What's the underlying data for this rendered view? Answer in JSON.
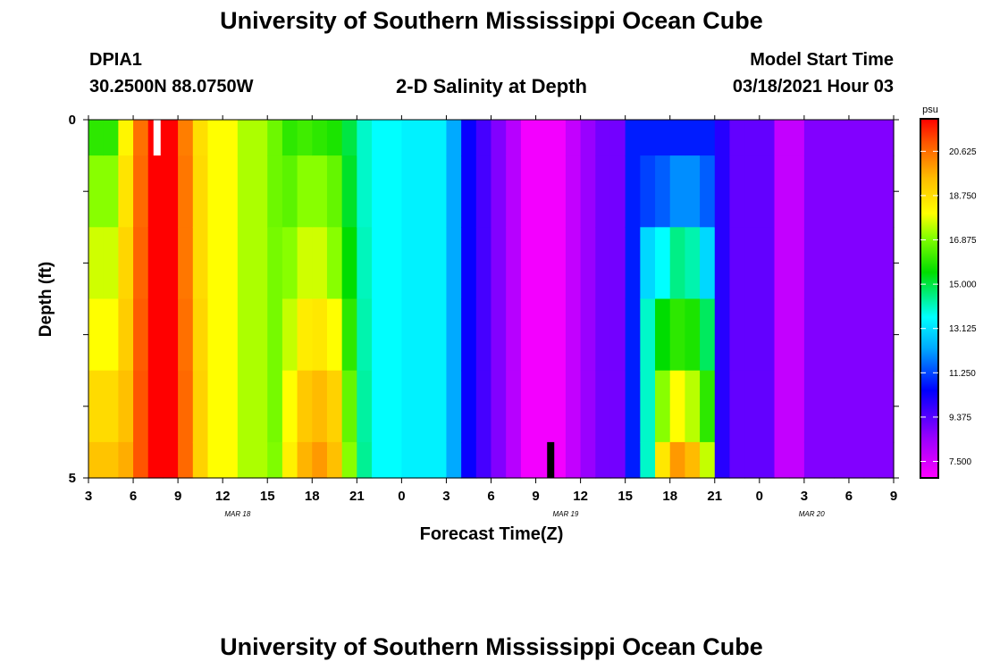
{
  "page": {
    "title": "University of Southern Mississippi Ocean Cube",
    "station_id": "DPIA1",
    "coordinates": "30.2500N 88.0750W",
    "subtitle": "2-D Salinity at Depth",
    "model_label": "Model Start Time",
    "model_time": "03/18/2021 Hour 03",
    "footer_title": "University of Southern Mississippi Ocean Cube"
  },
  "chart_data": {
    "type": "heatmap",
    "title": "2-D Salinity at Depth",
    "xlabel": "Forecast Time(Z)",
    "ylabel": "Depth (ft)",
    "x_tick_labels": [
      "3",
      "6",
      "9",
      "12",
      "15",
      "18",
      "21",
      "0",
      "3",
      "6",
      "9",
      "12",
      "15",
      "18",
      "21",
      "0",
      "3",
      "6",
      "9"
    ],
    "x_hours": [
      3,
      6,
      9,
      12,
      15,
      18,
      21,
      24,
      27,
      30,
      33,
      36,
      39,
      42,
      45,
      48,
      51,
      54,
      57
    ],
    "x_range_hours": [
      3,
      57
    ],
    "date_labels": [
      {
        "text": "MAR 18",
        "hour": 13
      },
      {
        "text": "MAR 19",
        "hour": 35
      },
      {
        "text": "MAR 20",
        "hour": 51.5
      }
    ],
    "y_range_ft": [
      0,
      5
    ],
    "y_tick_labels": [
      {
        "value": 0,
        "label": "0"
      },
      {
        "value": 1,
        "label": ""
      },
      {
        "value": 2,
        "label": ""
      },
      {
        "value": 3,
        "label": ""
      },
      {
        "value": 4,
        "label": ""
      },
      {
        "value": 5,
        "label": "5"
      }
    ],
    "colorbar": {
      "unit": "psu",
      "min": 6.8,
      "max": 22.0,
      "ticks": [
        "20.625",
        "18.750",
        "16.875",
        "15.000",
        "13.125",
        "11.250",
        "9.375",
        "7.500"
      ],
      "stops": [
        {
          "v": 6.8,
          "c": "#ff00ff"
        },
        {
          "v": 8.5,
          "c": "#9900ff"
        },
        {
          "v": 10.5,
          "c": "#0000ff"
        },
        {
          "v": 12.3,
          "c": "#00aaff"
        },
        {
          "v": 13.6,
          "c": "#00ffff"
        },
        {
          "v": 15.5,
          "c": "#00dd00"
        },
        {
          "v": 17.0,
          "c": "#88ff00"
        },
        {
          "v": 18.0,
          "c": "#ffff00"
        },
        {
          "v": 19.5,
          "c": "#ffbb00"
        },
        {
          "v": 21.0,
          "c": "#ff5500"
        },
        {
          "v": 22.0,
          "c": "#ff0000"
        }
      ]
    },
    "depth_layers_ft": [
      0,
      0.5,
      1.5,
      2.5,
      3.5,
      4.5
    ],
    "time_step_hours": 1,
    "salinity_profiles": [
      {
        "start": 3,
        "end": 5,
        "psu": [
          16.0,
          17.0,
          17.6,
          18.0,
          18.8,
          19.3
        ]
      },
      {
        "start": 5,
        "end": 6,
        "psu": [
          18.2,
          18.6,
          18.9,
          19.1,
          19.4,
          19.7
        ]
      },
      {
        "start": 6,
        "end": 7,
        "psu": [
          20.6,
          20.7,
          20.8,
          20.9,
          21.0,
          21.0
        ]
      },
      {
        "start": 7,
        "end": 9,
        "psu": [
          22.0,
          22.0,
          22.0,
          22.0,
          22.0,
          22.0
        ]
      },
      {
        "start": 9,
        "end": 10,
        "psu": [
          20.4,
          20.5,
          20.5,
          20.6,
          20.7,
          20.7
        ]
      },
      {
        "start": 10,
        "end": 11,
        "psu": [
          18.7,
          18.8,
          18.8,
          18.9,
          19.0,
          19.0
        ]
      },
      {
        "start": 11,
        "end": 13,
        "psu": [
          18.0,
          18.0,
          18.0,
          18.0,
          18.0,
          18.0
        ]
      },
      {
        "start": 13,
        "end": 15,
        "psu": [
          17.3,
          17.3,
          17.3,
          17.3,
          17.3,
          17.3
        ]
      },
      {
        "start": 15,
        "end": 16,
        "psu": [
          16.7,
          16.7,
          16.8,
          16.8,
          16.8,
          16.9
        ]
      },
      {
        "start": 16,
        "end": 17,
        "psu": [
          16.0,
          16.5,
          17.0,
          17.5,
          18.0,
          18.3
        ]
      },
      {
        "start": 17,
        "end": 18,
        "psu": [
          16.2,
          17.0,
          17.6,
          18.4,
          19.2,
          19.6
        ]
      },
      {
        "start": 18,
        "end": 19,
        "psu": [
          16.0,
          17.0,
          17.6,
          18.5,
          19.5,
          20.0
        ]
      },
      {
        "start": 19,
        "end": 20,
        "psu": [
          15.8,
          16.6,
          17.0,
          18.0,
          19.0,
          19.4
        ]
      },
      {
        "start": 20,
        "end": 21,
        "psu": [
          15.0,
          15.2,
          15.5,
          16.0,
          16.6,
          17.0
        ]
      },
      {
        "start": 21,
        "end": 22,
        "psu": [
          14.0,
          14.0,
          14.1,
          14.2,
          14.3,
          14.4
        ]
      },
      {
        "start": 22,
        "end": 24,
        "psu": [
          13.6,
          13.6,
          13.6,
          13.6,
          13.6,
          13.6
        ]
      },
      {
        "start": 24,
        "end": 27,
        "psu": [
          13.4,
          13.4,
          13.4,
          13.4,
          13.4,
          13.4
        ]
      },
      {
        "start": 27,
        "end": 28,
        "psu": [
          12.3,
          12.3,
          12.3,
          12.3,
          12.3,
          12.3
        ]
      },
      {
        "start": 28,
        "end": 29,
        "psu": [
          10.4,
          10.4,
          10.4,
          10.4,
          10.4,
          10.4
        ]
      },
      {
        "start": 29,
        "end": 30,
        "psu": [
          9.6,
          9.6,
          9.6,
          9.6,
          9.6,
          9.6
        ]
      },
      {
        "start": 30,
        "end": 31,
        "psu": [
          8.8,
          8.8,
          8.8,
          8.8,
          8.8,
          8.8
        ]
      },
      {
        "start": 31,
        "end": 32,
        "psu": [
          8.0,
          8.0,
          8.0,
          8.0,
          8.0,
          8.0
        ]
      },
      {
        "start": 32,
        "end": 35,
        "psu": [
          7.0,
          7.0,
          7.0,
          7.0,
          7.0,
          7.0
        ]
      },
      {
        "start": 35,
        "end": 36,
        "psu": [
          7.8,
          7.8,
          7.8,
          7.8,
          7.8,
          7.8
        ]
      },
      {
        "start": 36,
        "end": 37,
        "psu": [
          8.5,
          8.5,
          8.5,
          8.5,
          8.5,
          8.5
        ]
      },
      {
        "start": 37,
        "end": 39,
        "psu": [
          9.0,
          9.0,
          9.0,
          9.0,
          9.0,
          9.0
        ]
      },
      {
        "start": 39,
        "end": 40,
        "psu": [
          10.8,
          10.8,
          10.8,
          10.8,
          10.8,
          10.8
        ]
      },
      {
        "start": 40,
        "end": 41,
        "psu": [
          10.8,
          11.2,
          13.0,
          14.0,
          14.0,
          14.0
        ]
      },
      {
        "start": 41,
        "end": 42,
        "psu": [
          10.8,
          11.5,
          13.6,
          15.5,
          17.0,
          18.5
        ]
      },
      {
        "start": 42,
        "end": 43,
        "psu": [
          10.8,
          12.0,
          14.5,
          16.0,
          18.0,
          20.0
        ]
      },
      {
        "start": 43,
        "end": 44,
        "psu": [
          10.8,
          12.0,
          14.2,
          15.8,
          17.4,
          19.5
        ]
      },
      {
        "start": 44,
        "end": 45,
        "psu": [
          10.8,
          11.5,
          13.0,
          14.8,
          16.0,
          17.5
        ]
      },
      {
        "start": 45,
        "end": 46,
        "psu": [
          10.0,
          10.0,
          10.0,
          10.0,
          10.0,
          10.0
        ]
      },
      {
        "start": 46,
        "end": 49,
        "psu": [
          9.2,
          9.2,
          9.2,
          9.2,
          9.2,
          9.2
        ]
      },
      {
        "start": 49,
        "end": 51,
        "psu": [
          7.8,
          7.8,
          7.8,
          7.8,
          7.8,
          7.8
        ]
      },
      {
        "start": 51,
        "end": 57,
        "psu": [
          8.8,
          8.8,
          8.8,
          8.8,
          8.8,
          8.8
        ]
      }
    ],
    "markers": [
      {
        "name": "surface-marker",
        "hour": 7.6,
        "depth_from": 0,
        "depth_to": 0.5,
        "color": "#ffffff"
      },
      {
        "name": "bottom-marker",
        "hour": 34.0,
        "depth_from": 4.5,
        "depth_to": 5,
        "color": "#000000"
      }
    ]
  }
}
